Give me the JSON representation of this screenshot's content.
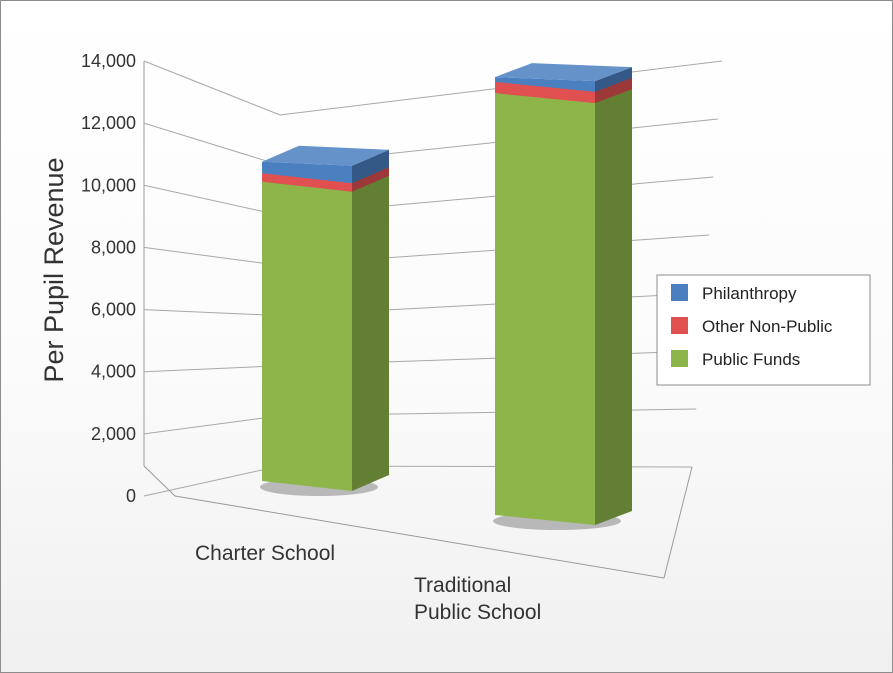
{
  "chart_data": {
    "type": "bar",
    "stacked": true,
    "three_d": true,
    "categories": [
      "Charter School",
      "Traditional\nPublic School"
    ],
    "series": [
      {
        "name": "Public Funds",
        "color": "#8db54a",
        "values": [
          10500,
          13100
        ]
      },
      {
        "name": "Other Non-Public",
        "color": "#e05050",
        "values": [
          300,
          350
        ]
      },
      {
        "name": "Philanthropy",
        "color": "#4a7fc0",
        "values": [
          400,
          150
        ]
      }
    ],
    "ylabel": "Per Pupil Revenue",
    "xlabel": "",
    "ylim": [
      0,
      14000
    ],
    "yticks": [
      0,
      2000,
      4000,
      6000,
      8000,
      10000,
      12000,
      14000
    ],
    "ytick_labels": [
      "0",
      "2,000",
      "4,000",
      "6,000",
      "8,000",
      "10,000",
      "12,000",
      "14,000"
    ],
    "legend": {
      "placement": "right",
      "order": [
        "Philanthropy",
        "Other Non-Public",
        "Public Funds"
      ]
    },
    "grid": true
  }
}
